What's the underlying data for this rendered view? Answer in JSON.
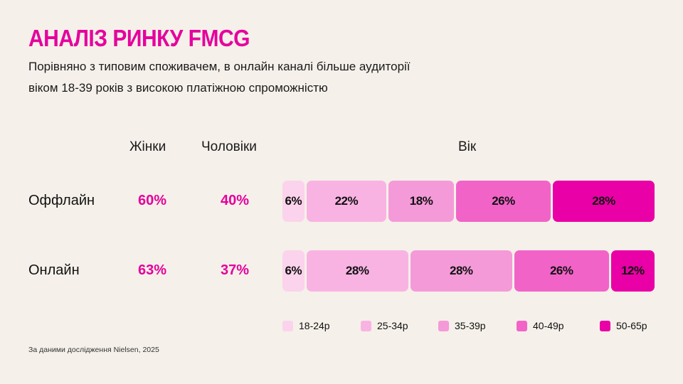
{
  "title": "АНАЛІЗ РИНКУ FMCG",
  "subtitle_line1": "Порівняно з типовим споживачем, в онлайн каналі більше аудиторії",
  "subtitle_line2": "віком 18-39 років з високою платіжною спроможністю",
  "source": "За даними дослідження Nielsen, 2025",
  "chart_data": {
    "type": "table",
    "headers": {
      "women": "Жінки",
      "men": "Чоловіки",
      "age": "Вік"
    },
    "age_groups": [
      "18-24р",
      "25-34р",
      "35-39р",
      "40-49р",
      "50-65р"
    ],
    "colors": [
      "#fbd3ec",
      "#f9b3e3",
      "#f59ad8",
      "#f263c8",
      "#e900a6"
    ],
    "rows": [
      {
        "label": "Оффлайн",
        "women": "60%",
        "men": "40%",
        "age_values": [
          6,
          22,
          18,
          26,
          28
        ]
      },
      {
        "label": "Онлайн",
        "women": "63%",
        "men": "37%",
        "age_values": [
          6,
          28,
          28,
          26,
          12
        ]
      }
    ]
  }
}
